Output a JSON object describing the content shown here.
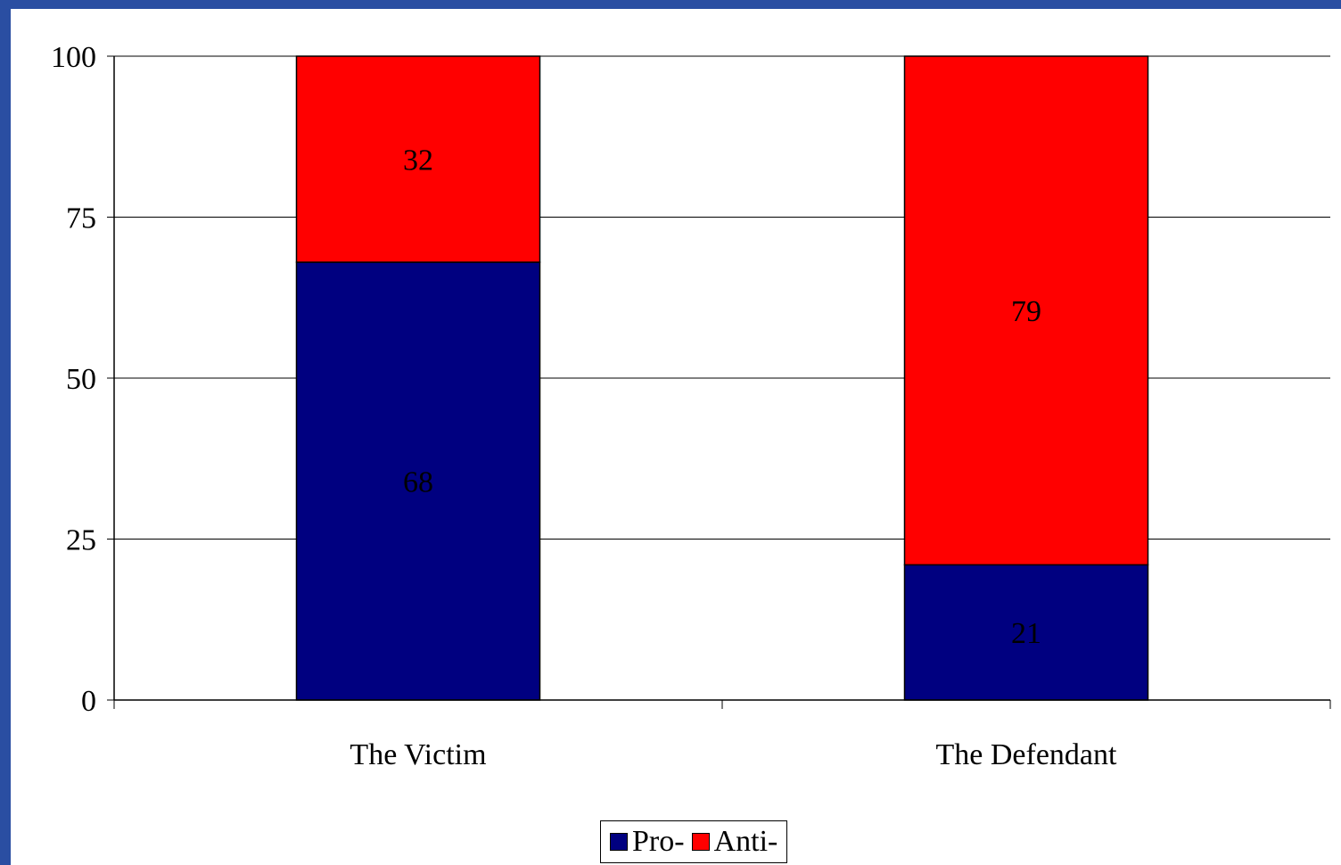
{
  "chart_data": {
    "type": "bar",
    "stacked": true,
    "categories": [
      "The Victim",
      "The Defendant"
    ],
    "series": [
      {
        "name": "Pro-",
        "values": [
          68,
          21
        ],
        "color": "#000080"
      },
      {
        "name": "Anti-",
        "values": [
          32,
          79
        ],
        "color": "#ff0000"
      }
    ],
    "ylim": [
      0,
      100
    ],
    "yticks": [
      0,
      25,
      50,
      75,
      100
    ],
    "grid": true,
    "legend_position": "bottom",
    "background_color": "#2a4ea2"
  }
}
